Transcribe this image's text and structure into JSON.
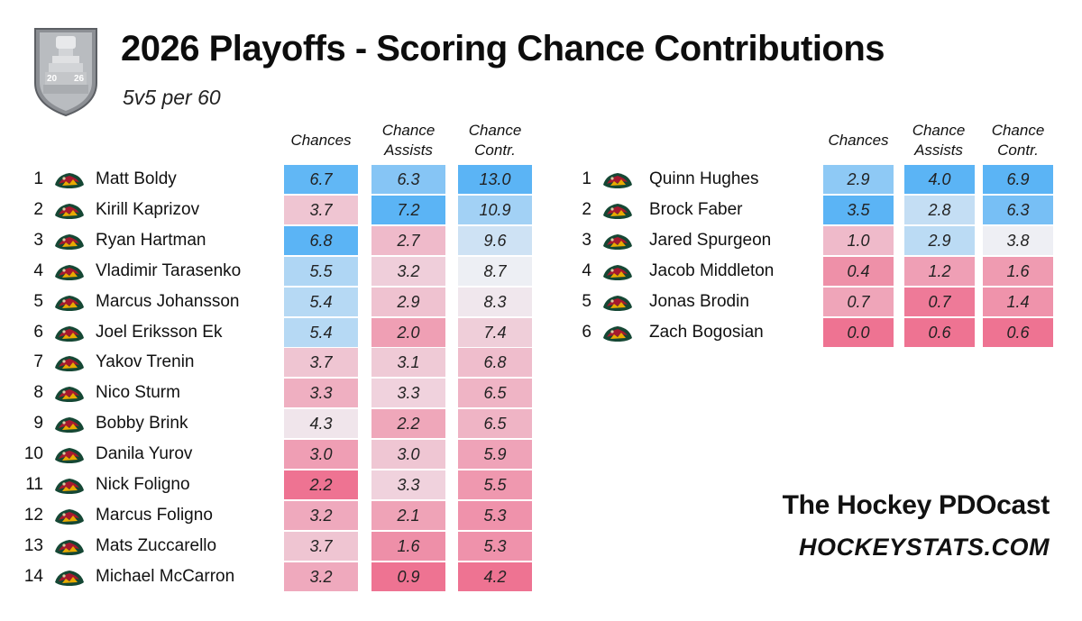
{
  "header": {
    "title": "2026 Playoffs - Scoring Chance Contributions",
    "subtitle": "5v5 per 60",
    "logo_icon": "stanley-cup-2026-logo",
    "logo_text_left": "20",
    "logo_text_right": "26"
  },
  "columns": [
    {
      "line1": "Chances",
      "line2": ""
    },
    {
      "line1": "Chance",
      "line2": "Assists"
    },
    {
      "line1": "Chance",
      "line2": "Contr."
    }
  ],
  "team_icon": "minnesota-wild-logo",
  "colors": {
    "high": "#5bb4f5",
    "mid": "#f0f0f4",
    "low": "#ee7392"
  },
  "forwards": [
    {
      "rank": "1",
      "name": "Matt Boldy",
      "chances": "6.7",
      "assists": "6.3",
      "contr": "13.0"
    },
    {
      "rank": "2",
      "name": "Kirill Kaprizov",
      "chances": "3.7",
      "assists": "7.2",
      "contr": "10.9"
    },
    {
      "rank": "3",
      "name": "Ryan Hartman",
      "chances": "6.8",
      "assists": "2.7",
      "contr": "9.6"
    },
    {
      "rank": "4",
      "name": "Vladimir Tarasenko",
      "chances": "5.5",
      "assists": "3.2",
      "contr": "8.7"
    },
    {
      "rank": "5",
      "name": "Marcus Johansson",
      "chances": "5.4",
      "assists": "2.9",
      "contr": "8.3"
    },
    {
      "rank": "6",
      "name": "Joel Eriksson Ek",
      "chances": "5.4",
      "assists": "2.0",
      "contr": "7.4"
    },
    {
      "rank": "7",
      "name": "Yakov Trenin",
      "chances": "3.7",
      "assists": "3.1",
      "contr": "6.8"
    },
    {
      "rank": "8",
      "name": "Nico Sturm",
      "chances": "3.3",
      "assists": "3.3",
      "contr": "6.5"
    },
    {
      "rank": "9",
      "name": "Bobby Brink",
      "chances": "4.3",
      "assists": "2.2",
      "contr": "6.5"
    },
    {
      "rank": "10",
      "name": "Danila Yurov",
      "chances": "3.0",
      "assists": "3.0",
      "contr": "5.9"
    },
    {
      "rank": "11",
      "name": "Nick Foligno",
      "chances": "2.2",
      "assists": "3.3",
      "contr": "5.5"
    },
    {
      "rank": "12",
      "name": "Marcus Foligno",
      "chances": "3.2",
      "assists": "2.1",
      "contr": "5.3"
    },
    {
      "rank": "13",
      "name": "Mats Zuccarello",
      "chances": "3.7",
      "assists": "1.6",
      "contr": "5.3"
    },
    {
      "rank": "14",
      "name": "Michael McCarron",
      "chances": "3.2",
      "assists": "0.9",
      "contr": "4.2"
    }
  ],
  "defense": [
    {
      "rank": "1",
      "name": "Quinn Hughes",
      "chances": "2.9",
      "assists": "4.0",
      "contr": "6.9"
    },
    {
      "rank": "2",
      "name": "Brock Faber",
      "chances": "3.5",
      "assists": "2.8",
      "contr": "6.3"
    },
    {
      "rank": "3",
      "name": "Jared Spurgeon",
      "chances": "1.0",
      "assists": "2.9",
      "contr": "3.8"
    },
    {
      "rank": "4",
      "name": "Jacob Middleton",
      "chances": "0.4",
      "assists": "1.2",
      "contr": "1.6"
    },
    {
      "rank": "5",
      "name": "Jonas Brodin",
      "chances": "0.7",
      "assists": "0.7",
      "contr": "1.4"
    },
    {
      "rank": "6",
      "name": "Zach Bogosian",
      "chances": "0.0",
      "assists": "0.6",
      "contr": "0.6"
    }
  ],
  "branding": {
    "line1": "The Hockey PDOcast",
    "line2": "HOCKEYSTATS.COM"
  },
  "chart_data": [
    {
      "type": "table",
      "title": "2026 Playoffs - Scoring Chance Contributions",
      "subtitle": "5v5 per 60",
      "columns": [
        "Chances",
        "Chance Assists",
        "Chance Contr."
      ],
      "rows": [
        [
          "Matt Boldy",
          6.7,
          6.3,
          13.0
        ],
        [
          "Kirill Kaprizov",
          3.7,
          7.2,
          10.9
        ],
        [
          "Ryan Hartman",
          6.8,
          2.7,
          9.6
        ],
        [
          "Vladimir Tarasenko",
          5.5,
          3.2,
          8.7
        ],
        [
          "Marcus Johansson",
          5.4,
          2.9,
          8.3
        ],
        [
          "Joel Eriksson Ek",
          5.4,
          2.0,
          7.4
        ],
        [
          "Yakov Trenin",
          3.7,
          3.1,
          6.8
        ],
        [
          "Nico Sturm",
          3.3,
          3.3,
          6.5
        ],
        [
          "Bobby Brink",
          4.3,
          2.2,
          6.5
        ],
        [
          "Danila Yurov",
          3.0,
          3.0,
          5.9
        ],
        [
          "Nick Foligno",
          2.2,
          3.3,
          5.5
        ],
        [
          "Marcus Foligno",
          3.2,
          2.1,
          5.3
        ],
        [
          "Mats Zuccarello",
          3.7,
          1.6,
          5.3
        ],
        [
          "Michael McCarron",
          3.2,
          0.9,
          4.2
        ]
      ]
    },
    {
      "type": "table",
      "columns": [
        "Chances",
        "Chance Assists",
        "Chance Contr."
      ],
      "rows": [
        [
          "Quinn Hughes",
          2.9,
          4.0,
          6.9
        ],
        [
          "Brock Faber",
          3.5,
          2.8,
          6.3
        ],
        [
          "Jared Spurgeon",
          1.0,
          2.9,
          3.8
        ],
        [
          "Jacob Middleton",
          0.4,
          1.2,
          1.6
        ],
        [
          "Jonas Brodin",
          0.7,
          0.7,
          1.4
        ],
        [
          "Zach Bogosian",
          0.0,
          0.6,
          0.6
        ]
      ]
    }
  ]
}
